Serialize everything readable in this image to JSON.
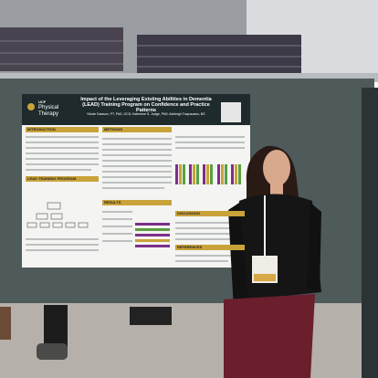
{
  "poster": {
    "brand": "UCF",
    "department": "Physical Therapy",
    "title": "Impact of the Leveraging Existing Abilities in Dementia (LEAD) Training Program on Confidence and Practice Patterns",
    "authors": "Nicole Dawson, PT, PhD, GCS; Katherine S. Judge, PhD; Ashleigh Trapuzzano, BS",
    "sections": [
      "INTRODUCTION",
      "METHODS",
      "LEAD TRAINING PROGRAM",
      "RESULTS",
      "DISCUSSION",
      "REFERENCES"
    ]
  }
}
